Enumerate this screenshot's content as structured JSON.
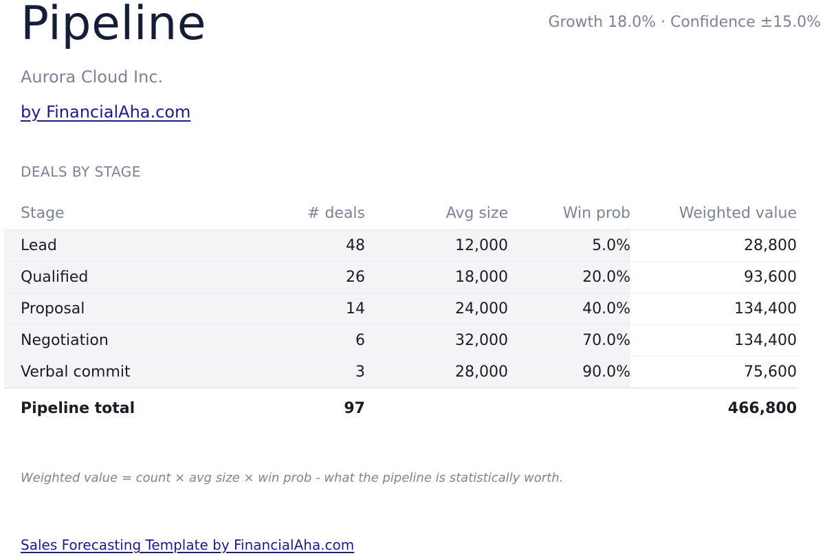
{
  "header": {
    "title": "Pipeline",
    "meta": "Growth 18.0% · Confidence ±15.0%",
    "company": "Aurora Cloud Inc.",
    "byline": "by FinancialAha.com"
  },
  "section": {
    "label": "DEALS BY STAGE"
  },
  "table": {
    "columns": [
      "Stage",
      "# deals",
      "Avg size",
      "Win prob",
      "Weighted value"
    ],
    "rows": [
      {
        "stage": "Lead",
        "deals": "48",
        "avg_size": "12,000",
        "win_prob": "5.0%",
        "weighted": "28,800"
      },
      {
        "stage": "Qualified",
        "deals": "26",
        "avg_size": "18,000",
        "win_prob": "20.0%",
        "weighted": "93,600"
      },
      {
        "stage": "Proposal",
        "deals": "14",
        "avg_size": "24,000",
        "win_prob": "40.0%",
        "weighted": "134,400"
      },
      {
        "stage": "Negotiation",
        "deals": "6",
        "avg_size": "32,000",
        "win_prob": "70.0%",
        "weighted": "134,400"
      },
      {
        "stage": "Verbal commit",
        "deals": "3",
        "avg_size": "28,000",
        "win_prob": "90.0%",
        "weighted": "75,600"
      }
    ],
    "total": {
      "label": "Pipeline total",
      "deals": "97",
      "weighted": "466,800"
    }
  },
  "note": "Weighted value = count × avg size × win prob - what the pipeline is statistically worth.",
  "footer": {
    "link": "Sales Forecasting Template by FinancialAha.com"
  },
  "colors": {
    "title": "#141e38",
    "muted": "#7b8396",
    "link": "#1b1b8a",
    "row_shade": "#f3f4f6"
  }
}
